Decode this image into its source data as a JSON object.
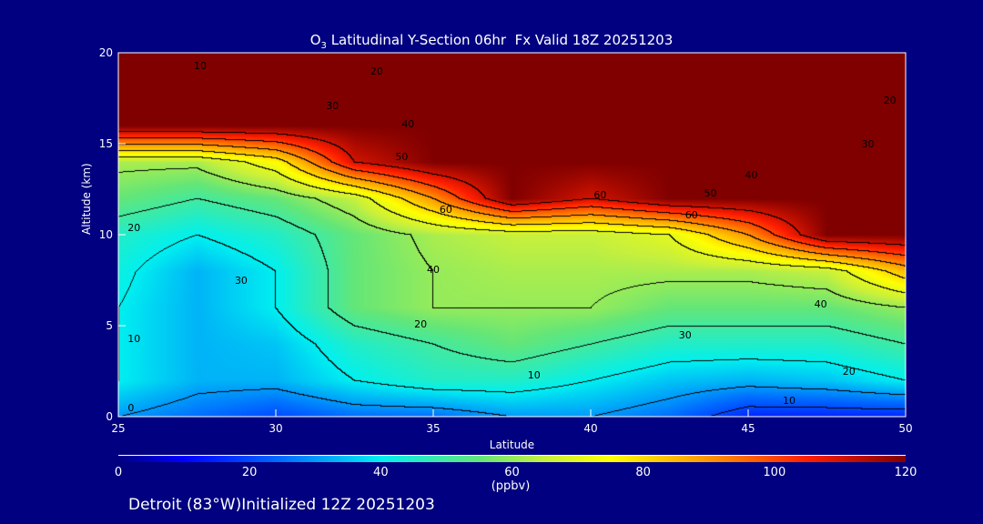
{
  "chart_data": {
    "type": "heatmap",
    "title_prefix": "O",
    "title_sub": "3",
    "title_rest": " Latitudinal Y-Section 06hr  Fx Valid 18Z 20251203",
    "xlabel": "Latitude",
    "ylabel": "Altitude (km)",
    "xlim": [
      25,
      50
    ],
    "ylim": [
      0,
      20
    ],
    "xticks": [
      "25",
      "30",
      "35",
      "40",
      "45",
      "50"
    ],
    "yticks": [
      "0",
      "5",
      "10",
      "15",
      "20"
    ],
    "x": [
      25,
      27.5,
      30,
      32.5,
      35,
      37.5,
      40,
      42.5,
      45,
      47.5,
      50
    ],
    "y": [
      0,
      2,
      4,
      6,
      8,
      10,
      12,
      14,
      16,
      18,
      20
    ],
    "z": [
      [
        30,
        25,
        20,
        25,
        25,
        30,
        30,
        25,
        15,
        15,
        15
      ],
      [
        40,
        33,
        33,
        40,
        45,
        45,
        40,
        35,
        33,
        35,
        40
      ],
      [
        40,
        33,
        35,
        45,
        50,
        55,
        50,
        45,
        45,
        45,
        50
      ],
      [
        40,
        33,
        40,
        55,
        60,
        60,
        60,
        55,
        55,
        55,
        60
      ],
      [
        42,
        33,
        40,
        55,
        60,
        62,
        62,
        62,
        62,
        65,
        85
      ],
      [
        45,
        40,
        45,
        55,
        62,
        65,
        65,
        70,
        90,
        120,
        120
      ],
      [
        55,
        50,
        55,
        65,
        90,
        120,
        110,
        120,
        120,
        120,
        120
      ],
      [
        62,
        62,
        75,
        110,
        120,
        120,
        120,
        120,
        120,
        120,
        120
      ],
      [
        120,
        120,
        120,
        120,
        120,
        120,
        120,
        120,
        120,
        120,
        120
      ],
      [
        120,
        120,
        120,
        120,
        120,
        120,
        120,
        120,
        120,
        120,
        120
      ],
      [
        120,
        120,
        120,
        120,
        120,
        120,
        120,
        120,
        120,
        120,
        120
      ]
    ],
    "contour_interval": 10,
    "contour_labels": [
      {
        "text": "10",
        "lat": 27.6,
        "alt": 19.3
      },
      {
        "text": "20",
        "lat": 33.2,
        "alt": 19.0
      },
      {
        "text": "30",
        "lat": 31.8,
        "alt": 17.1
      },
      {
        "text": "40",
        "lat": 34.2,
        "alt": 16.1
      },
      {
        "text": "50",
        "lat": 34.0,
        "alt": 14.3
      },
      {
        "text": "60",
        "lat": 35.4,
        "alt": 11.4
      },
      {
        "text": "60",
        "lat": 40.3,
        "alt": 12.2
      },
      {
        "text": "50",
        "lat": 43.8,
        "alt": 12.3
      },
      {
        "text": "60",
        "lat": 43.2,
        "alt": 11.1
      },
      {
        "text": "40",
        "lat": 45.1,
        "alt": 13.3
      },
      {
        "text": "30",
        "lat": 48.8,
        "alt": 15.0
      },
      {
        "text": "20",
        "lat": 49.5,
        "alt": 17.4
      },
      {
        "text": "40",
        "lat": 35.0,
        "alt": 8.1
      },
      {
        "text": "40",
        "lat": 47.3,
        "alt": 6.2
      },
      {
        "text": "30",
        "lat": 28.9,
        "alt": 7.5
      },
      {
        "text": "20",
        "lat": 25.5,
        "alt": 10.4
      },
      {
        "text": "10",
        "lat": 25.5,
        "alt": 4.3
      },
      {
        "text": "0",
        "lat": 25.4,
        "alt": 0.5
      },
      {
        "text": "20",
        "lat": 34.6,
        "alt": 5.1
      },
      {
        "text": "30",
        "lat": 43.0,
        "alt": 4.5
      },
      {
        "text": "10",
        "lat": 38.2,
        "alt": 2.3
      },
      {
        "text": "20",
        "lat": 48.2,
        "alt": 2.5
      },
      {
        "text": "10",
        "lat": 46.3,
        "alt": 0.9
      }
    ],
    "colorbar": {
      "min": 0,
      "max": 120,
      "ticks": [
        "0",
        "20",
        "40",
        "60",
        "80",
        "100",
        "120"
      ],
      "units": "(ppbv)"
    }
  },
  "footer": "Detroit (83°W)Initialized 12Z 20251203"
}
